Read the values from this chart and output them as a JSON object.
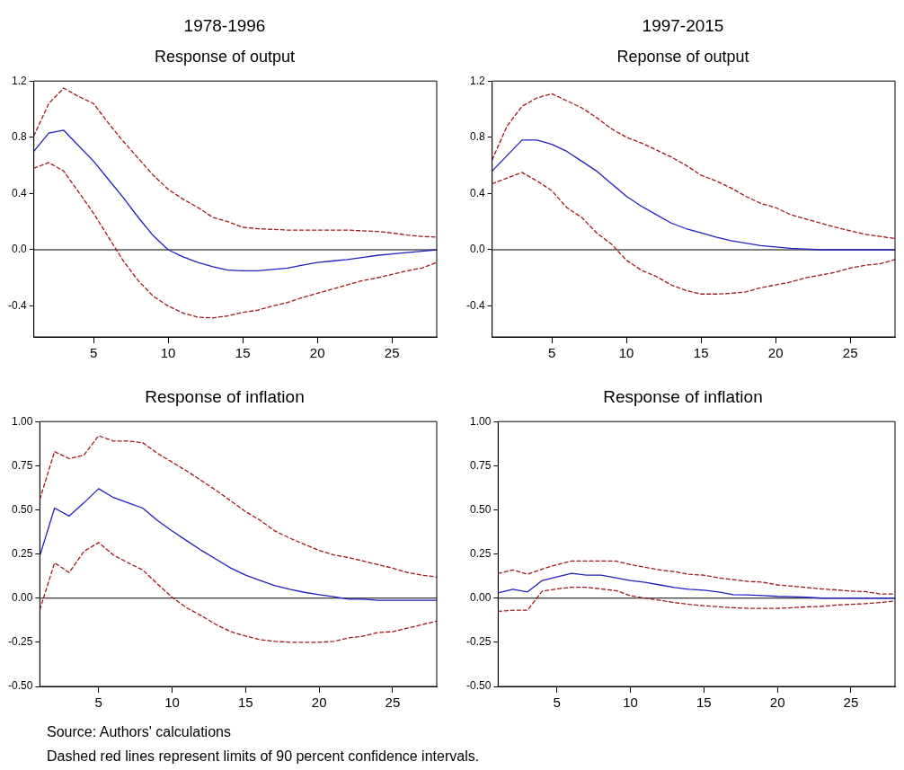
{
  "chart_data": [
    {
      "type": "line",
      "title": "1978-1996",
      "subtitle": "Response of output",
      "x": [
        1,
        2,
        3,
        4,
        5,
        6,
        7,
        8,
        9,
        10,
        11,
        12,
        13,
        14,
        15,
        16,
        17,
        18,
        19,
        20,
        21,
        22,
        23,
        24,
        25,
        26,
        27,
        28
      ],
      "xlim": [
        1,
        28
      ],
      "xticks": [
        5,
        10,
        15,
        20,
        25
      ],
      "ylim": [
        -0.62,
        1.2
      ],
      "yticks": [
        -0.4,
        {
          "value": 0,
          "label": "0.0"
        },
        0.4,
        0.8,
        1.2
      ],
      "grid": false,
      "legend": false,
      "marker": "none",
      "ref_lines": [
        {
          "axis": "y",
          "value": 0,
          "color": "#000000"
        }
      ],
      "series": [
        {
          "color": "#2020c0",
          "line_style": "solid",
          "values": [
            0.7,
            0.83,
            0.85,
            0.74,
            0.63,
            0.5,
            0.37,
            0.23,
            0.1,
            0.0,
            -0.05,
            -0.09,
            -0.12,
            -0.145,
            -0.15,
            -0.15,
            -0.14,
            -0.13,
            -0.11,
            -0.09,
            -0.08,
            -0.07,
            -0.055,
            -0.04,
            -0.03,
            -0.02,
            -0.01,
            0.0
          ]
        },
        {
          "color": "#a01818",
          "line_style": "dashed",
          "values": [
            0.81,
            1.04,
            1.15,
            1.09,
            1.04,
            0.9,
            0.77,
            0.65,
            0.53,
            0.43,
            0.36,
            0.3,
            0.23,
            0.2,
            0.16,
            0.15,
            0.145,
            0.14,
            0.14,
            0.14,
            0.14,
            0.14,
            0.135,
            0.13,
            0.12,
            0.105,
            0.095,
            0.09
          ]
        },
        {
          "color": "#a01818",
          "line_style": "dashed",
          "values": [
            0.58,
            0.62,
            0.56,
            0.41,
            0.26,
            0.09,
            -0.08,
            -0.22,
            -0.33,
            -0.4,
            -0.45,
            -0.48,
            -0.485,
            -0.47,
            -0.445,
            -0.43,
            -0.4,
            -0.375,
            -0.34,
            -0.31,
            -0.28,
            -0.25,
            -0.22,
            -0.2,
            -0.175,
            -0.15,
            -0.13,
            -0.09
          ]
        }
      ]
    },
    {
      "type": "line",
      "title": "1997-2015",
      "subtitle": "Reponse of output",
      "x": [
        1,
        2,
        3,
        4,
        5,
        6,
        7,
        8,
        9,
        10,
        11,
        12,
        13,
        14,
        15,
        16,
        17,
        18,
        19,
        20,
        21,
        22,
        23,
        24,
        25,
        26,
        27,
        28
      ],
      "xlim": [
        1,
        28
      ],
      "xticks": [
        5,
        10,
        15,
        20,
        25
      ],
      "ylim": [
        -0.62,
        1.2
      ],
      "yticks": [
        -0.4,
        {
          "value": 0,
          "label": "0.0"
        },
        0.4,
        0.8,
        1.2
      ],
      "grid": false,
      "legend": false,
      "marker": "none",
      "ref_lines": [
        {
          "axis": "y",
          "value": 0,
          "color": "#000000"
        }
      ],
      "series": [
        {
          "color": "#2020c0",
          "line_style": "solid",
          "values": [
            0.56,
            0.67,
            0.78,
            0.78,
            0.75,
            0.7,
            0.63,
            0.56,
            0.47,
            0.38,
            0.31,
            0.25,
            0.19,
            0.15,
            0.12,
            0.09,
            0.065,
            0.047,
            0.03,
            0.02,
            0.01,
            0.005,
            0.0,
            0.0,
            0.0,
            0.0,
            0.0,
            0.0
          ]
        },
        {
          "color": "#a01818",
          "line_style": "dashed",
          "values": [
            0.64,
            0.88,
            1.02,
            1.08,
            1.11,
            1.06,
            1.01,
            0.94,
            0.86,
            0.8,
            0.76,
            0.71,
            0.66,
            0.6,
            0.53,
            0.49,
            0.44,
            0.38,
            0.33,
            0.3,
            0.25,
            0.22,
            0.19,
            0.16,
            0.135,
            0.11,
            0.095,
            0.08
          ]
        },
        {
          "color": "#a01818",
          "line_style": "dashed",
          "values": [
            0.47,
            0.51,
            0.55,
            0.49,
            0.42,
            0.3,
            0.23,
            0.12,
            0.04,
            -0.075,
            -0.145,
            -0.19,
            -0.25,
            -0.29,
            -0.315,
            -0.315,
            -0.31,
            -0.3,
            -0.27,
            -0.25,
            -0.23,
            -0.2,
            -0.18,
            -0.16,
            -0.13,
            -0.11,
            -0.1,
            -0.07
          ]
        }
      ]
    },
    {
      "type": "line",
      "title": "Response of inflation",
      "x": [
        1,
        2,
        3,
        4,
        5,
        6,
        7,
        8,
        9,
        10,
        11,
        12,
        13,
        14,
        15,
        16,
        17,
        18,
        19,
        20,
        21,
        22,
        23,
        24,
        25,
        26,
        27,
        28
      ],
      "xlim": [
        1,
        28
      ],
      "xticks": [
        5,
        10,
        15,
        20,
        25
      ],
      "ylim": [
        -0.5,
        1.0
      ],
      "yticks": [
        {
          "value": -0.5,
          "label": "-0.50"
        },
        {
          "value": -0.25,
          "label": "-0.25"
        },
        {
          "value": 0,
          "label": "0.00"
        },
        {
          "value": 0.25,
          "label": "0.25"
        },
        {
          "value": 0.5,
          "label": "0.50"
        },
        {
          "value": 0.75,
          "label": "0.75"
        },
        {
          "value": 1.0,
          "label": "1.00"
        }
      ],
      "grid": false,
      "legend": false,
      "marker": "none",
      "ref_lines": [
        {
          "axis": "y",
          "value": 0,
          "color": "#000000"
        }
      ],
      "annotations": [
        "Source: Authors' calculations",
        "Dashed red lines represent limits of 90 percent confidence intervals."
      ],
      "series": [
        {
          "color": "#2020c0",
          "line_style": "solid",
          "values": [
            0.24,
            0.51,
            0.465,
            0.54,
            0.62,
            0.57,
            0.54,
            0.51,
            0.44,
            0.38,
            0.325,
            0.27,
            0.22,
            0.17,
            0.13,
            0.1,
            0.07,
            0.05,
            0.033,
            0.02,
            0.008,
            -0.006,
            -0.006,
            -0.012,
            -0.012,
            -0.012,
            -0.012,
            -0.012
          ]
        },
        {
          "color": "#a01818",
          "line_style": "dashed",
          "values": [
            0.56,
            0.83,
            0.79,
            0.81,
            0.92,
            0.89,
            0.89,
            0.88,
            0.82,
            0.77,
            0.72,
            0.665,
            0.61,
            0.55,
            0.49,
            0.44,
            0.38,
            0.34,
            0.305,
            0.27,
            0.245,
            0.23,
            0.21,
            0.19,
            0.17,
            0.145,
            0.13,
            0.12
          ]
        },
        {
          "color": "#a01818",
          "line_style": "dashed",
          "values": [
            -0.065,
            0.2,
            0.145,
            0.265,
            0.315,
            0.245,
            0.2,
            0.16,
            0.08,
            0.005,
            -0.055,
            -0.1,
            -0.15,
            -0.19,
            -0.215,
            -0.235,
            -0.245,
            -0.25,
            -0.25,
            -0.25,
            -0.245,
            -0.225,
            -0.215,
            -0.195,
            -0.19,
            -0.17,
            -0.15,
            -0.13
          ]
        }
      ]
    },
    {
      "type": "line",
      "title": "Response of inflation",
      "x": [
        1,
        2,
        3,
        4,
        5,
        6,
        7,
        8,
        9,
        10,
        11,
        12,
        13,
        14,
        15,
        16,
        17,
        18,
        19,
        20,
        21,
        22,
        23,
        24,
        25,
        26,
        27,
        28
      ],
      "xlim": [
        1,
        28
      ],
      "xticks": [
        5,
        10,
        15,
        20,
        25
      ],
      "ylim": [
        -0.5,
        1.0
      ],
      "yticks": [
        {
          "value": -0.5,
          "label": "-0.50"
        },
        {
          "value": -0.25,
          "label": "-0.25"
        },
        {
          "value": 0,
          "label": "0.00"
        },
        {
          "value": 0.25,
          "label": "0.25"
        },
        {
          "value": 0.5,
          "label": "0.50"
        },
        {
          "value": 0.75,
          "label": "0.75"
        },
        {
          "value": 1.0,
          "label": "1.00"
        }
      ],
      "grid": false,
      "legend": false,
      "marker": "none",
      "ref_lines": [
        {
          "axis": "y",
          "value": 0,
          "color": "#000000"
        }
      ],
      "series": [
        {
          "color": "#2020c0",
          "line_style": "solid",
          "values": [
            0.03,
            0.05,
            0.035,
            0.1,
            0.12,
            0.14,
            0.13,
            0.13,
            0.115,
            0.1,
            0.09,
            0.075,
            0.06,
            0.05,
            0.045,
            0.035,
            0.02,
            0.018,
            0.015,
            0.01,
            0.008,
            0.005,
            0.0,
            0.0,
            0.0,
            0.0,
            0.0,
            0.0
          ]
        },
        {
          "color": "#a01818",
          "line_style": "dashed",
          "values": [
            0.14,
            0.16,
            0.135,
            0.165,
            0.19,
            0.21,
            0.21,
            0.21,
            0.21,
            0.19,
            0.175,
            0.16,
            0.15,
            0.135,
            0.13,
            0.115,
            0.105,
            0.095,
            0.09,
            0.075,
            0.068,
            0.06,
            0.052,
            0.047,
            0.04,
            0.037,
            0.023,
            0.023
          ]
        },
        {
          "color": "#a01818",
          "line_style": "dashed",
          "values": [
            -0.075,
            -0.068,
            -0.068,
            0.04,
            0.052,
            0.062,
            0.062,
            0.052,
            0.043,
            0.014,
            0.0,
            -0.012,
            -0.025,
            -0.035,
            -0.043,
            -0.049,
            -0.054,
            -0.058,
            -0.058,
            -0.058,
            -0.054,
            -0.049,
            -0.047,
            -0.039,
            -0.035,
            -0.031,
            -0.025,
            -0.016
          ]
        }
      ]
    }
  ]
}
